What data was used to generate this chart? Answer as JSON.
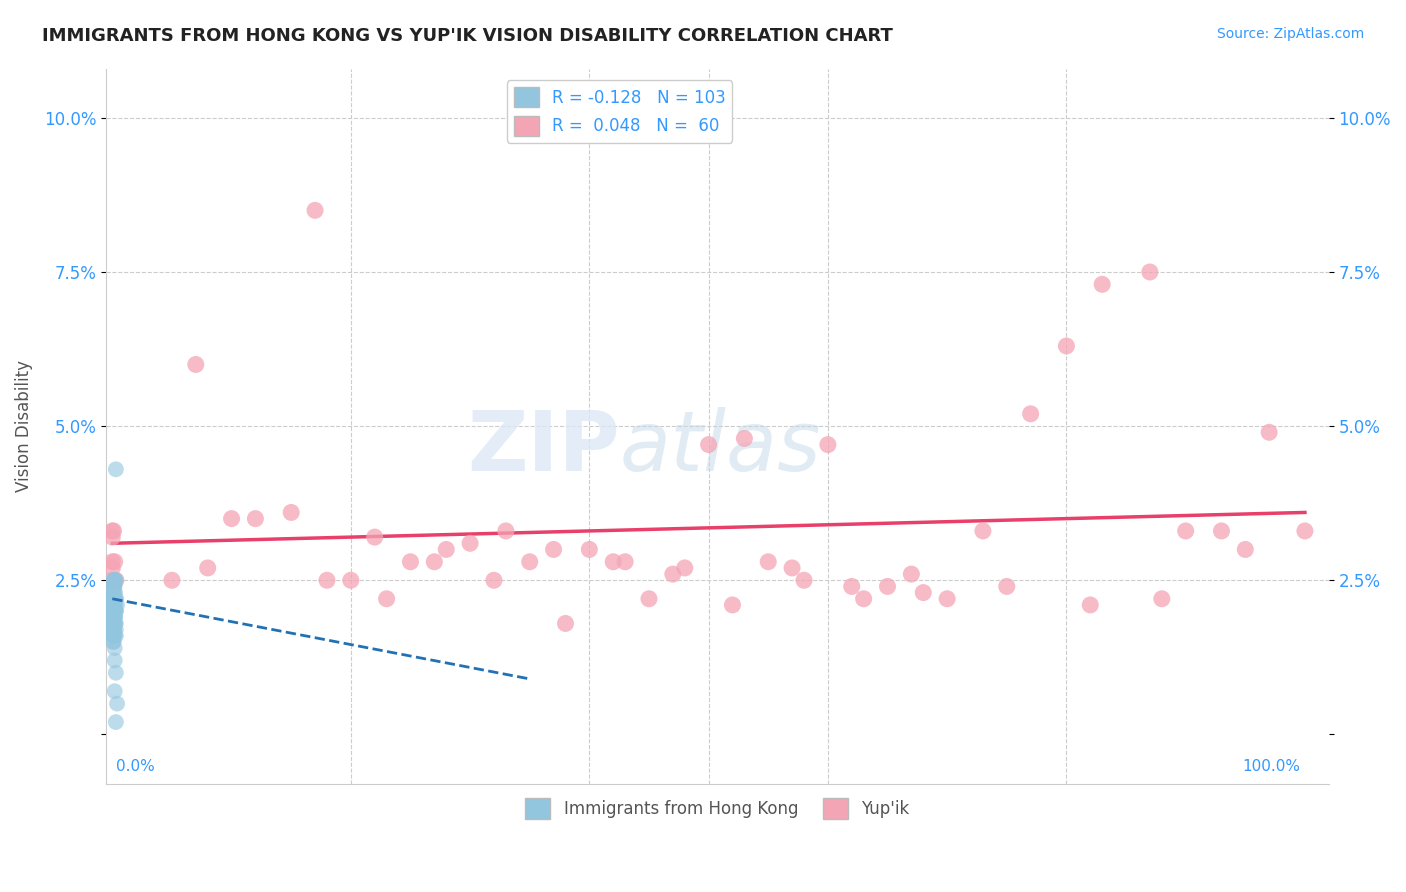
{
  "title": "IMMIGRANTS FROM HONG KONG VS YUP'IK VISION DISABILITY CORRELATION CHART",
  "source": "Source: ZipAtlas.com",
  "ylabel": "Vision Disability",
  "yticks": [
    0.0,
    0.025,
    0.05,
    0.075,
    0.1
  ],
  "ytick_labels": [
    "",
    "2.5%",
    "5.0%",
    "7.5%",
    "10.0%"
  ],
  "xlim": [
    -0.005,
    1.02
  ],
  "ylim": [
    -0.008,
    0.108
  ],
  "legend_R1": "R = -0.128",
  "legend_N1": "N = 103",
  "legend_R2": "R =  0.048",
  "legend_N2": "N =  60",
  "label1": "Immigrants from Hong Kong",
  "label2": "Yup'ik",
  "color_blue": "#92c5de",
  "color_pink": "#f4a5b5",
  "trend_blue_color": "#2171b5",
  "trend_pink_color": "#e8406a",
  "background_color": "#ffffff",
  "title_fontsize": 13,
  "blue_x": [
    0.0,
    0.001,
    0.0,
    0.002,
    0.001,
    0.001,
    0.001,
    0.002,
    0.0,
    0.001,
    0.001,
    0.002,
    0.001,
    0.001,
    0.002,
    0.002,
    0.001,
    0.001,
    0.002,
    0.001,
    0.0,
    0.001,
    0.001,
    0.001,
    0.0,
    0.001,
    0.001,
    0.002,
    0.0,
    0.001,
    0.0,
    0.001,
    0.002,
    0.001,
    0.001,
    0.002,
    0.003,
    0.001,
    0.001,
    0.003,
    0.002,
    0.001,
    0.001,
    0.002,
    0.0,
    0.0,
    0.001,
    0.001,
    0.001,
    0.001,
    0.001,
    0.001,
    0.001,
    0.002,
    0.001,
    0.003,
    0.002,
    0.002,
    0.003,
    0.001,
    0.001,
    0.002,
    0.001,
    0.001,
    0.001,
    0.001,
    0.002,
    0.002,
    0.003,
    0.001,
    0.001,
    0.001,
    0.0,
    0.002,
    0.002,
    0.001,
    0.001,
    0.001,
    0.0,
    0.001,
    0.001,
    0.002,
    0.002,
    0.001,
    0.001,
    0.003,
    0.003,
    0.002,
    0.003,
    0.004,
    0.001,
    0.001,
    0.0,
    0.002,
    0.001,
    0.002,
    0.002,
    0.003,
    0.002,
    0.004,
    0.003,
    0.003,
    0.002
  ],
  "blue_y": [
    0.02,
    0.015,
    0.022,
    0.021,
    0.019,
    0.023,
    0.02,
    0.018,
    0.021,
    0.022,
    0.016,
    0.02,
    0.019,
    0.017,
    0.023,
    0.025,
    0.018,
    0.021,
    0.022,
    0.017,
    0.02,
    0.019,
    0.016,
    0.024,
    0.021,
    0.018,
    0.022,
    0.019,
    0.02,
    0.017,
    0.023,
    0.025,
    0.019,
    0.022,
    0.018,
    0.021,
    0.02,
    0.016,
    0.024,
    0.022,
    0.019,
    0.017,
    0.021,
    0.025,
    0.018,
    0.02,
    0.022,
    0.019,
    0.017,
    0.021,
    0.016,
    0.024,
    0.02,
    0.018,
    0.022,
    0.025,
    0.019,
    0.021,
    0.017,
    0.02,
    0.018,
    0.022,
    0.024,
    0.019,
    0.021,
    0.016,
    0.02,
    0.018,
    0.022,
    0.025,
    0.019,
    0.021,
    0.017,
    0.016,
    0.02,
    0.022,
    0.019,
    0.024,
    0.018,
    0.021,
    0.017,
    0.022,
    0.025,
    0.019,
    0.021,
    0.016,
    0.02,
    0.023,
    0.018,
    0.021,
    0.019,
    0.015,
    0.017,
    0.022,
    0.02,
    0.024,
    0.014,
    0.01,
    0.007,
    0.005,
    0.043,
    0.002,
    0.012
  ],
  "pink_x": [
    0.0,
    0.0,
    0.0,
    0.0,
    0.0,
    0.12,
    0.17,
    0.22,
    0.25,
    0.27,
    0.3,
    0.33,
    0.37,
    0.4,
    0.43,
    0.47,
    0.5,
    0.53,
    0.57,
    0.6,
    0.63,
    0.67,
    0.7,
    0.73,
    0.77,
    0.8,
    0.83,
    0.87,
    0.9,
    0.93,
    0.97,
    1.0,
    0.07,
    0.1,
    0.15,
    0.2,
    0.28,
    0.35,
    0.42,
    0.48,
    0.55,
    0.62,
    0.68,
    0.75,
    0.82,
    0.88,
    0.95,
    0.001,
    0.002,
    0.003,
    0.05,
    0.08,
    0.18,
    0.23,
    0.32,
    0.38,
    0.45,
    0.52,
    0.58,
    0.65
  ],
  "pink_y": [
    0.033,
    0.028,
    0.032,
    0.025,
    0.027,
    0.035,
    0.085,
    0.032,
    0.028,
    0.028,
    0.031,
    0.033,
    0.03,
    0.03,
    0.028,
    0.026,
    0.047,
    0.048,
    0.027,
    0.047,
    0.022,
    0.026,
    0.022,
    0.033,
    0.052,
    0.063,
    0.073,
    0.075,
    0.033,
    0.033,
    0.049,
    0.033,
    0.06,
    0.035,
    0.036,
    0.025,
    0.03,
    0.028,
    0.028,
    0.027,
    0.028,
    0.024,
    0.023,
    0.024,
    0.021,
    0.022,
    0.03,
    0.033,
    0.028,
    0.025,
    0.025,
    0.027,
    0.025,
    0.022,
    0.025,
    0.018,
    0.022,
    0.021,
    0.025,
    0.024
  ],
  "blue_trend_x": [
    0.0,
    0.35
  ],
  "blue_trend_y": [
    0.022,
    0.009
  ],
  "pink_trend_x": [
    0.0,
    1.0
  ],
  "pink_trend_y": [
    0.031,
    0.036
  ]
}
